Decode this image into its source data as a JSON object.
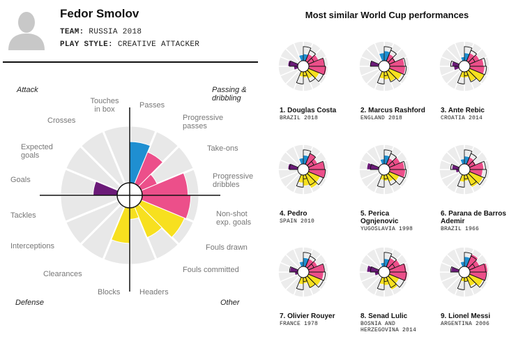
{
  "player": {
    "name": "Fedor Smolov",
    "team_label": "TEAM:",
    "team_value": "RUSSIA 2018",
    "style_label": "PLAY STYLE:",
    "style_value": "CREATIVE ATTACKER"
  },
  "right_title": "Most similar World Cup performances",
  "colors": {
    "attack": "#1f8fd1",
    "passing": "#ec4f8a",
    "other": "#f7e01f",
    "defense": "#6b1a78",
    "ring": "#e8e8e8",
    "outline": "#111111"
  },
  "chart_data": [
    {
      "type": "polar-bar",
      "title": "Fedor Smolov",
      "categories": [
        "Touches in box",
        "Passes",
        "Progressive passes",
        "Take-ons",
        "Progressive dribbles",
        "Non-shot exp. goals",
        "Fouls drawn",
        "Fouls committed",
        "Headers",
        "Blocks",
        "Clearances",
        "Interceptions",
        "Tackles",
        "Goals",
        "Expected goals",
        "Crosses"
      ],
      "category_labels": [
        "Touches\nin box",
        "Passes",
        "Progressive\npasses",
        "Take-ons",
        "Progressive\ndribbles",
        "Non-shot\nexp. goals",
        "Fouls drawn",
        "Fouls committed",
        "Headers",
        "Blocks",
        "Clearances",
        "Interceptions",
        "Tackles",
        "Goals",
        "Expected\ngoals",
        "Crosses"
      ],
      "groups": [
        "attack",
        "passing",
        "passing",
        "passing",
        "passing",
        "other",
        "other",
        "other",
        "other",
        "defense",
        "defense",
        "defense",
        "defense",
        "attack",
        "attack",
        "attack"
      ],
      "values": [
        0.72,
        0.6,
        0.3,
        0.8,
        0.85,
        0.82,
        0.58,
        0.2,
        0.62,
        0,
        0,
        0,
        0.42,
        0,
        0,
        0
      ],
      "rlim": [
        0,
        1
      ],
      "quadrants": [
        "Attack",
        "Passing &\ndribbling",
        "Defense",
        "Other"
      ]
    },
    {
      "type": "polar-bar-comparison",
      "title": "Most similar World Cup performances",
      "categories": [
        "Touches in box",
        "Passes",
        "Progressive passes",
        "Take-ons",
        "Progressive dribbles",
        "Non-shot exp. goals",
        "Fouls drawn",
        "Fouls committed",
        "Headers",
        "Blocks",
        "Clearances",
        "Interceptions",
        "Tackles",
        "Goals",
        "Expected goals",
        "Crosses"
      ],
      "reference_values": [
        0.72,
        0.6,
        0.3,
        0.8,
        0.85,
        0.82,
        0.58,
        0.2,
        0.62,
        0,
        0,
        0,
        0.42,
        0,
        0,
        0
      ],
      "series": [
        {
          "rank": "1.",
          "name": "Douglas Costa",
          "team": "BRAZIL 2018",
          "values": [
            0.35,
            0.4,
            0.55,
            0.8,
            0.9,
            0.6,
            0.4,
            0.3,
            0.25,
            0,
            0,
            0.2,
            0.5,
            0,
            0,
            0.3
          ]
        },
        {
          "rank": "2.",
          "name": "Marcus Rashford",
          "team": "ENGLAND 2018",
          "values": [
            0.5,
            0.4,
            0.35,
            0.75,
            0.8,
            0.7,
            0.55,
            0.4,
            0.35,
            0,
            0,
            0,
            0.45,
            0,
            0,
            0.4
          ]
        },
        {
          "rank": "3.",
          "name": "Ante Rebic",
          "team": "CROATIA 2014",
          "values": [
            0.4,
            0.45,
            0.55,
            0.7,
            0.75,
            0.85,
            0.55,
            0.3,
            0.3,
            0,
            0,
            0.25,
            0.35,
            0,
            0,
            0.2
          ]
        },
        {
          "rank": "4.",
          "name": "Pedro",
          "team": "SPAIN 2010",
          "values": [
            0.45,
            0.6,
            0.5,
            0.8,
            0.85,
            0.65,
            0.75,
            0.55,
            0.4,
            0,
            0,
            0,
            0.5,
            0,
            0,
            0.3
          ]
        },
        {
          "rank": "5.",
          "name": "Perica\nOgnjenovic",
          "team": "YUGOSLAVIA 1998",
          "values": [
            0.45,
            0.35,
            0.6,
            0.75,
            0.8,
            0.55,
            0.4,
            0.3,
            0.25,
            0,
            0,
            0,
            0.6,
            0,
            0,
            0.25
          ]
        },
        {
          "rank": "6.",
          "name": "Parana de Barros\nAdemir",
          "team": "BRAZIL 1966",
          "values": [
            0.4,
            0.4,
            0.35,
            0.7,
            0.65,
            0.75,
            0.7,
            0.3,
            0.35,
            0,
            0,
            0.15,
            0.35,
            0,
            0,
            0.25
          ]
        },
        {
          "rank": "7.",
          "name": "Olivier Rouyer",
          "team": "FRANCE 1978",
          "values": [
            0.45,
            0.45,
            0.5,
            0.8,
            0.75,
            0.7,
            0.6,
            0.3,
            0.35,
            0,
            0,
            0.15,
            0.4,
            0,
            0,
            0.25
          ]
        },
        {
          "rank": "8.",
          "name": "Senad Lulic",
          "team": "BOSNIA AND\nHERZEGOVINA 2014",
          "values": [
            0.4,
            0.5,
            0.6,
            0.85,
            0.9,
            0.55,
            0.7,
            0.4,
            0.35,
            0,
            0,
            0.2,
            0.6,
            0,
            0,
            0.2
          ]
        },
        {
          "rank": "9.",
          "name": "Lionel Messi",
          "team": "ARGENTINA 2006",
          "values": [
            0.5,
            0.7,
            0.55,
            0.9,
            0.85,
            0.75,
            0.5,
            0.2,
            0.2,
            0,
            0,
            0,
            0.4,
            0,
            0,
            0.25
          ]
        }
      ]
    }
  ]
}
